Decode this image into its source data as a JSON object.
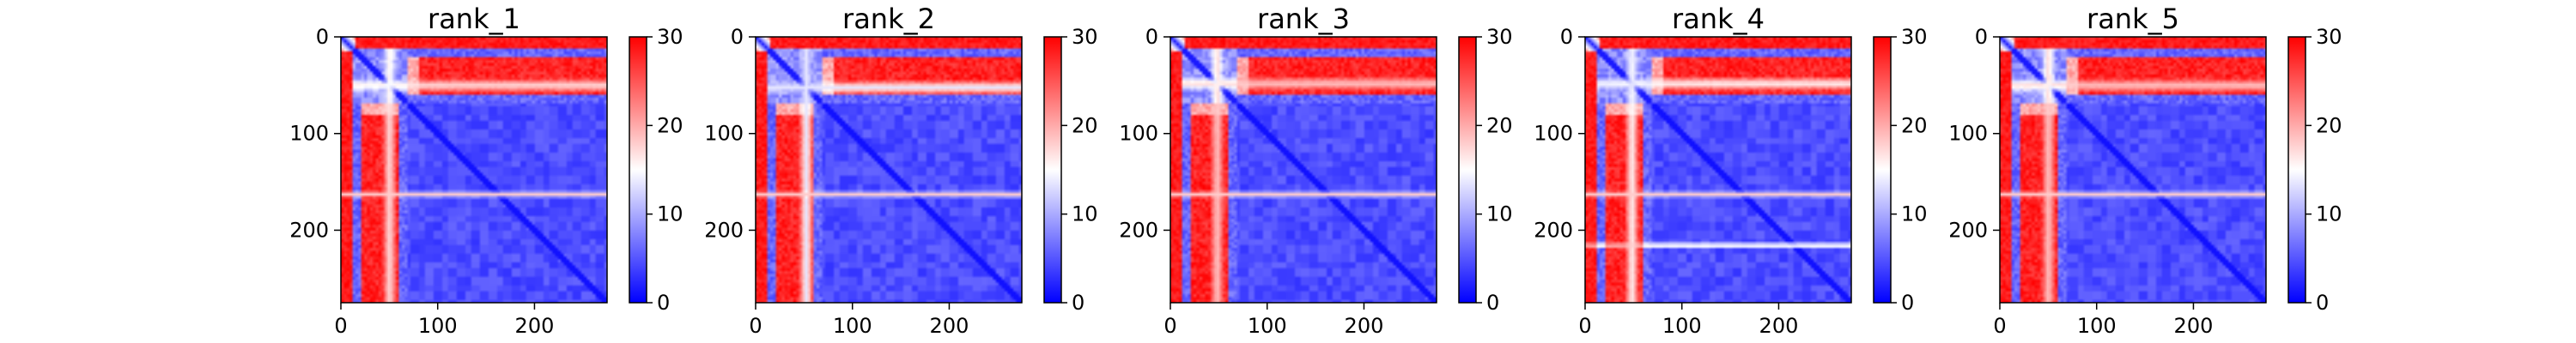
{
  "chart_data": [
    {
      "type": "heatmap",
      "title": "rank_1",
      "x_ticks": [
        "0",
        "100",
        "200"
      ],
      "y_ticks": [
        "0",
        "100",
        "200"
      ],
      "colorbar_ticks": [
        "0",
        "10",
        "20",
        "30"
      ],
      "colormap": "bwr",
      "value_range": [
        0,
        30
      ],
      "matrix_size": 275,
      "cross_band_center": 50,
      "cross_band_strength": 0.55,
      "stripe_rows": [
        162
      ],
      "grid": false
    },
    {
      "type": "heatmap",
      "title": "rank_2",
      "x_ticks": [
        "0",
        "100",
        "200"
      ],
      "y_ticks": [
        "0",
        "100",
        "200"
      ],
      "colorbar_ticks": [
        "0",
        "10",
        "20",
        "30"
      ],
      "colormap": "bwr",
      "value_range": [
        0,
        30
      ],
      "matrix_size": 275,
      "cross_band_center": 52,
      "cross_band_strength": 0.45,
      "stripe_rows": [
        162
      ],
      "grid": false
    },
    {
      "type": "heatmap",
      "title": "rank_3",
      "x_ticks": [
        "0",
        "100",
        "200"
      ],
      "y_ticks": [
        "0",
        "100",
        "200"
      ],
      "colorbar_ticks": [
        "0",
        "10",
        "20",
        "30"
      ],
      "colormap": "bwr",
      "value_range": [
        0,
        30
      ],
      "matrix_size": 275,
      "cross_band_center": 48,
      "cross_band_strength": 0.6,
      "stripe_rows": [
        162
      ],
      "grid": false
    },
    {
      "type": "heatmap",
      "title": "rank_4",
      "x_ticks": [
        "0",
        "100",
        "200"
      ],
      "y_ticks": [
        "0",
        "100",
        "200"
      ],
      "colorbar_ticks": [
        "0",
        "10",
        "20",
        "30"
      ],
      "colormap": "bwr",
      "value_range": [
        0,
        30
      ],
      "matrix_size": 275,
      "cross_band_center": 48,
      "cross_band_strength": 0.5,
      "stripe_rows": [
        162,
        215
      ],
      "grid": false
    },
    {
      "type": "heatmap",
      "title": "rank_5",
      "x_ticks": [
        "0",
        "100",
        "200"
      ],
      "y_ticks": [
        "0",
        "100",
        "200"
      ],
      "colorbar_ticks": [
        "0",
        "10",
        "20",
        "30"
      ],
      "colormap": "bwr",
      "value_range": [
        0,
        30
      ],
      "matrix_size": 275,
      "cross_band_center": 50,
      "cross_band_strength": 0.6,
      "stripe_rows": [
        162
      ],
      "grid": false
    }
  ]
}
